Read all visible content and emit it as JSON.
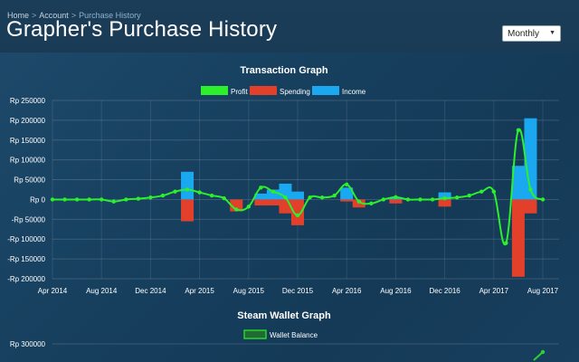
{
  "breadcrumb": {
    "items": [
      "Home",
      "Account",
      "Purchase History"
    ],
    "separator": ">"
  },
  "page_title": "Grapher's Purchase History",
  "period_select": {
    "selected": "Monthly"
  },
  "colors": {
    "profit": "#2bf02b",
    "spending": "#e2402a",
    "income": "#1aa8f0",
    "wallet": "#2bd22b"
  },
  "chart_data": [
    {
      "type": "bar",
      "title": "Transaction Graph",
      "legend": [
        "Profit",
        "Spending",
        "Income"
      ],
      "legend_placement": "top",
      "x_tick_labels": [
        "Apr 2014",
        "Aug 2014",
        "Dec 2014",
        "Apr 2015",
        "Aug 2015",
        "Dec 2015",
        "Apr 2016",
        "Aug 2016",
        "Dec 2016",
        "Apr 2017",
        "Aug 2017"
      ],
      "y_tick_labels": [
        "Rp 250000",
        "Rp 200000",
        "Rp 150000",
        "Rp 100000",
        "Rp 50000",
        "Rp 0",
        "-Rp 50000",
        "-Rp 100000",
        "-Rp 150000",
        "-Rp 200000"
      ],
      "ylim": [
        -200000,
        250000
      ],
      "grid": true,
      "categories": [
        "Apr 2014",
        "May 2014",
        "Jun 2014",
        "Jul 2014",
        "Aug 2014",
        "Sep 2014",
        "Oct 2014",
        "Nov 2014",
        "Dec 2014",
        "Jan 2015",
        "Feb 2015",
        "Mar 2015",
        "Apr 2015",
        "May 2015",
        "Jun 2015",
        "Jul 2015",
        "Aug 2015",
        "Sep 2015",
        "Oct 2015",
        "Nov 2015",
        "Dec 2015",
        "Jan 2016",
        "Feb 2016",
        "Mar 2016",
        "Apr 2016",
        "May 2016",
        "Jun 2016",
        "Jul 2016",
        "Aug 2016",
        "Sep 2016",
        "Oct 2016",
        "Nov 2016",
        "Dec 2016",
        "Jan 2017",
        "Feb 2017",
        "Mar 2017",
        "Apr 2017",
        "May 2017",
        "Jun 2017",
        "Jul 2017",
        "Aug 2017"
      ],
      "series": [
        {
          "name": "Income",
          "values": [
            0,
            0,
            0,
            0,
            0,
            0,
            0,
            0,
            0,
            0,
            0,
            70000,
            0,
            0,
            0,
            0,
            0,
            15000,
            25000,
            40000,
            20000,
            0,
            0,
            0,
            30000,
            0,
            0,
            0,
            5000,
            0,
            0,
            0,
            18000,
            0,
            0,
            0,
            0,
            0,
            85000,
            205000,
            0
          ]
        },
        {
          "name": "Spending",
          "values": [
            0,
            0,
            0,
            0,
            0,
            0,
            0,
            0,
            0,
            0,
            0,
            -55000,
            0,
            0,
            0,
            -30000,
            0,
            -15000,
            -15000,
            -35000,
            -65000,
            0,
            0,
            0,
            -5000,
            -20000,
            0,
            0,
            -10000,
            0,
            0,
            0,
            -18000,
            0,
            0,
            0,
            0,
            0,
            -195000,
            -35000,
            0
          ]
        },
        {
          "name": "Profit",
          "values": [
            0,
            0,
            0,
            0,
            0,
            -5000,
            0,
            2000,
            5000,
            10000,
            20000,
            25000,
            18000,
            10000,
            3000,
            -25000,
            -18000,
            30000,
            20000,
            5000,
            -40000,
            5000,
            5000,
            10000,
            38000,
            -5000,
            -10000,
            0,
            6000,
            0,
            0,
            0,
            3000,
            5000,
            10000,
            20000,
            20000,
            -110000,
            175000,
            25000,
            0
          ]
        }
      ]
    },
    {
      "type": "line",
      "title": "Steam Wallet Graph",
      "legend": [
        "Wallet Balance"
      ],
      "legend_placement": "top",
      "y_tick_labels": [
        "Rp 300000"
      ]
    }
  ]
}
